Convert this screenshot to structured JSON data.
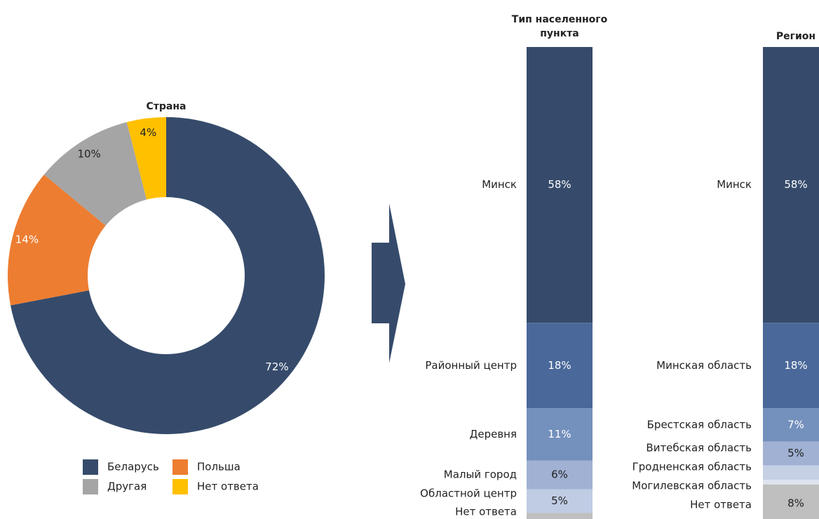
{
  "chart_data": [
    {
      "type": "pie",
      "title": "Страна",
      "categories": [
        "Беларусь",
        "Польша",
        "Другая",
        "Нет ответа"
      ],
      "values": [
        72,
        14,
        10,
        4
      ],
      "value_labels": [
        "72%",
        "14%",
        "10%",
        "4%"
      ],
      "colors": [
        "#364b6b",
        "#ed7d31",
        "#a5a5a5",
        "#ffc000"
      ],
      "donut": true,
      "legend": "bottom"
    },
    {
      "type": "stacked_bar",
      "title": [
        "Тип населенного",
        "пункта"
      ],
      "categories": [
        "Минск",
        "Районный центр",
        "Деревня",
        "Малый город",
        "Областной центр",
        "Нет ответа"
      ],
      "values": [
        58,
        18,
        11,
        6,
        5,
        2
      ],
      "value_labels": [
        "58%",
        "18%",
        "11%",
        "6%",
        "5%",
        null
      ],
      "colors": [
        "#364b6b",
        "#4a6899",
        "#7490bd",
        "#a0b1d3",
        "#c0cce3",
        "#bfbfbf"
      ],
      "ylim": [
        0,
        100
      ]
    },
    {
      "type": "stacked_bar",
      "title": [
        "Регион"
      ],
      "categories": [
        "Минск",
        "Минская область",
        "Брестская область",
        "Витебская область",
        "Гродненская область",
        "Могилевская область",
        "Нет ответа"
      ],
      "values": [
        58,
        18,
        7,
        5,
        3,
        1,
        8
      ],
      "value_labels": [
        "58%",
        "18%",
        "7%",
        "5%",
        null,
        null,
        "8%"
      ],
      "colors": [
        "#364b6b",
        "#4a6899",
        "#7490bd",
        "#a0b1d3",
        "#c6d0e5",
        "#dde3ef",
        "#bfbfbf"
      ],
      "ylim": [
        0,
        100
      ]
    }
  ]
}
